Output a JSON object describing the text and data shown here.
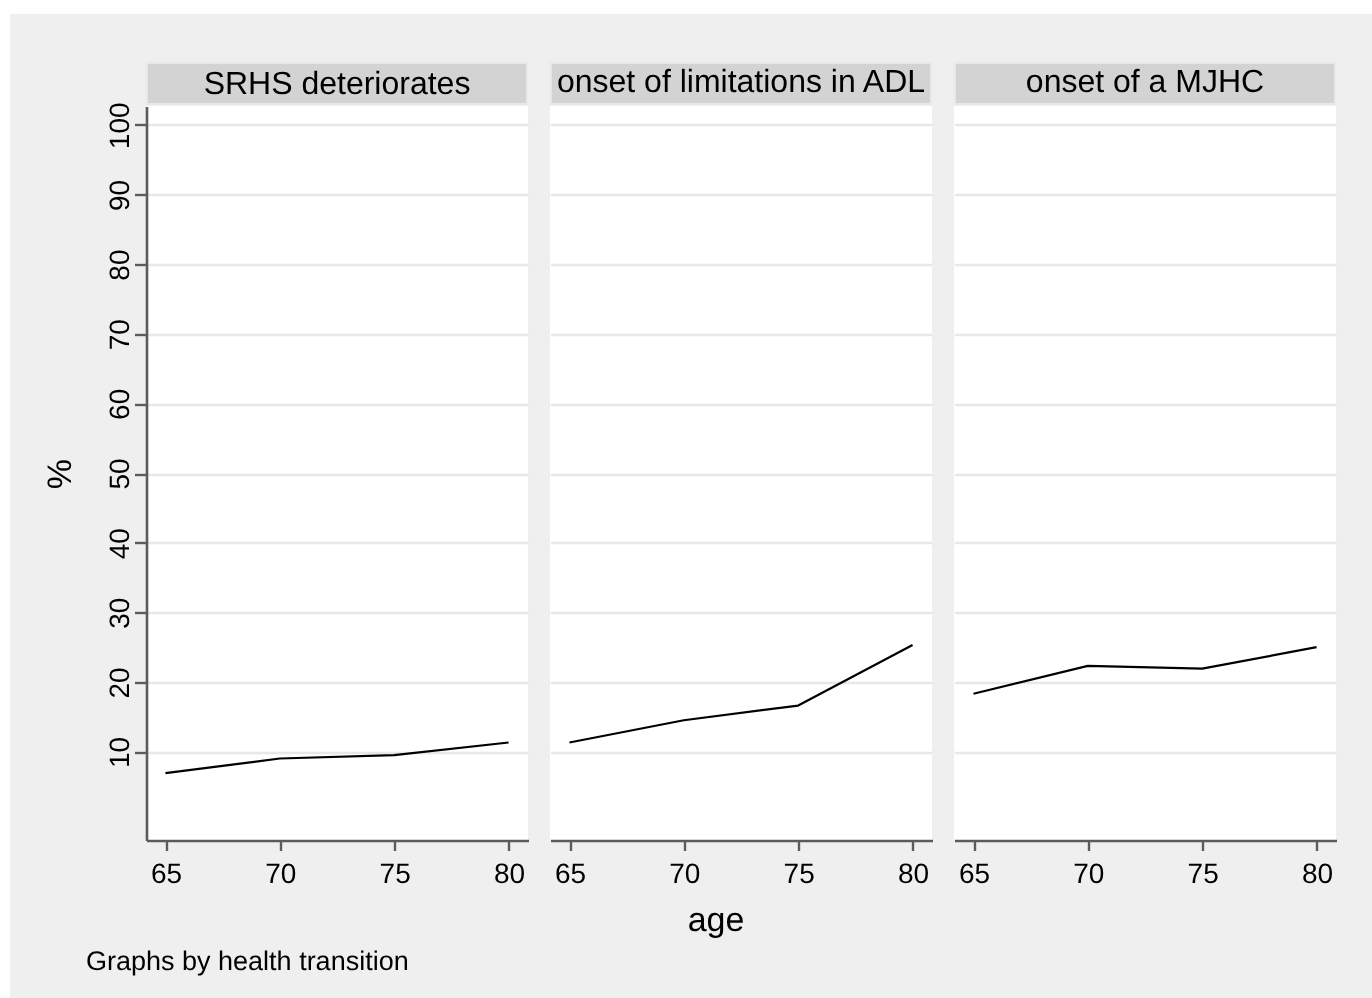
{
  "chart_data": [
    {
      "type": "line",
      "title": "SRHS deteriorates",
      "ylabel": "%",
      "x": [
        65,
        70,
        75,
        80
      ],
      "values": [
        6.9,
        9.0,
        9.5,
        11.3
      ],
      "color": "#000000",
      "xlim": [
        64.15,
        80.85
      ],
      "xticks": [
        65,
        70,
        75,
        80
      ],
      "ylim": [
        -2.7,
        102.7
      ],
      "yticks": [
        10,
        20,
        30,
        40,
        50,
        60,
        70,
        80,
        90,
        100
      ],
      "grid": "y",
      "annotations": [
        "Graphs by health transition"
      ]
    },
    {
      "type": "line",
      "title": "onset of limitations in ADL",
      "xlabel": "age",
      "x": [
        65,
        70,
        75,
        80
      ],
      "values": [
        11.3,
        14.5,
        16.6,
        25.3
      ],
      "color": "#000000",
      "xlim": [
        64.15,
        80.85
      ],
      "xticks": [
        65,
        70,
        75,
        80
      ],
      "ylim": [
        -2.7,
        102.7
      ],
      "yticks": [
        10,
        20,
        30,
        40,
        50,
        60,
        70,
        80,
        90,
        100
      ],
      "grid": "y",
      "tick_labels": "x"
    },
    {
      "type": "line",
      "title": "onset of a MJHC",
      "x": [
        65,
        70,
        75,
        80
      ],
      "values": [
        18.3,
        22.3,
        21.9,
        25.0
      ],
      "color": "#000000",
      "xlim": [
        64.15,
        80.85
      ],
      "xticks": [
        65,
        70,
        75,
        80
      ],
      "ylim": [
        -2.7,
        102.7
      ],
      "yticks": [
        10,
        20,
        30,
        40,
        50,
        60,
        70,
        80,
        90,
        100
      ],
      "grid": "y",
      "tick_labels": "x"
    }
  ]
}
